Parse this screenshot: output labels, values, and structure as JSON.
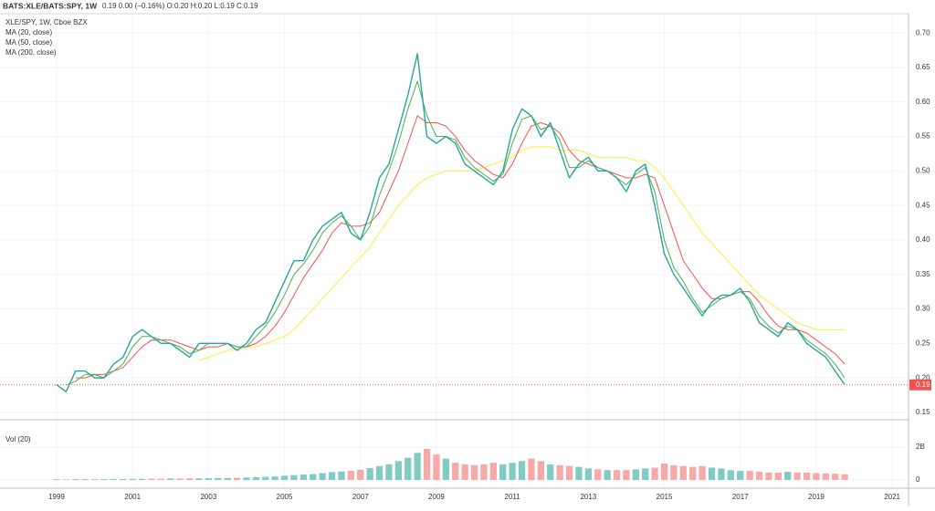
{
  "chart_data": {
    "type": "line",
    "title": "BATS:XLE/BATS:SPY, 1W",
    "subtitle": "0.19 0.00 (−0.16%) O:0.20 H:0.20 L:0.19 C:0.19",
    "x": [
      1999,
      1999.25,
      1999.5,
      1999.75,
      2000,
      2000.25,
      2000.5,
      2000.75,
      2001,
      2001.25,
      2001.5,
      2001.75,
      2002,
      2002.25,
      2002.5,
      2002.75,
      2003,
      2003.25,
      2003.5,
      2003.75,
      2004,
      2004.25,
      2004.5,
      2004.75,
      2005,
      2005.25,
      2005.5,
      2005.75,
      2006,
      2006.25,
      2006.5,
      2006.75,
      2007,
      2007.25,
      2007.5,
      2007.75,
      2008,
      2008.25,
      2008.5,
      2008.75,
      2009,
      2009.25,
      2009.5,
      2009.75,
      2010,
      2010.25,
      2010.5,
      2010.75,
      2011,
      2011.25,
      2011.5,
      2011.75,
      2012,
      2012.25,
      2012.5,
      2012.75,
      2013,
      2013.25,
      2013.5,
      2013.75,
      2014,
      2014.25,
      2014.5,
      2014.75,
      2015,
      2015.25,
      2015.5,
      2015.75,
      2016,
      2016.25,
      2016.5,
      2016.75,
      2017,
      2017.25,
      2017.5,
      2017.75,
      2018,
      2018.25,
      2018.5,
      2018.75,
      2019,
      2019.25,
      2019.5,
      2019.75
    ],
    "series": [
      {
        "name": "XLE/SPY, 1W, Cboe BZX",
        "color": "#26a69a",
        "width": 1.4,
        "values": [
          0.19,
          0.18,
          0.21,
          0.21,
          0.2,
          0.2,
          0.22,
          0.23,
          0.26,
          0.27,
          0.26,
          0.25,
          0.25,
          0.24,
          0.23,
          0.25,
          0.25,
          0.25,
          0.25,
          0.24,
          0.25,
          0.27,
          0.28,
          0.31,
          0.34,
          0.37,
          0.37,
          0.4,
          0.42,
          0.43,
          0.44,
          0.41,
          0.4,
          0.44,
          0.49,
          0.51,
          0.56,
          0.61,
          0.67,
          0.55,
          0.54,
          0.55,
          0.54,
          0.51,
          0.5,
          0.49,
          0.48,
          0.5,
          0.56,
          0.59,
          0.58,
          0.55,
          0.57,
          0.53,
          0.49,
          0.51,
          0.52,
          0.5,
          0.5,
          0.49,
          0.47,
          0.5,
          0.51,
          0.45,
          0.38,
          0.35,
          0.33,
          0.31,
          0.29,
          0.31,
          0.32,
          0.32,
          0.33,
          0.31,
          0.28,
          0.27,
          0.26,
          0.28,
          0.27,
          0.25,
          0.24,
          0.23,
          0.21,
          0.19
        ]
      },
      {
        "name": "MA (20, close)",
        "color": "#4caf50",
        "width": 1,
        "values": [
          null,
          0.19,
          0.195,
          0.205,
          0.205,
          0.2,
          0.21,
          0.22,
          0.245,
          0.26,
          0.26,
          0.255,
          0.25,
          0.245,
          0.235,
          0.24,
          0.25,
          0.25,
          0.25,
          0.245,
          0.245,
          0.26,
          0.275,
          0.295,
          0.32,
          0.35,
          0.365,
          0.385,
          0.41,
          0.425,
          0.435,
          0.42,
          0.4,
          0.42,
          0.465,
          0.5,
          0.54,
          0.59,
          0.63,
          0.58,
          0.55,
          0.55,
          0.545,
          0.52,
          0.505,
          0.495,
          0.485,
          0.495,
          0.54,
          0.575,
          0.58,
          0.56,
          0.565,
          0.545,
          0.505,
          0.505,
          0.515,
          0.505,
          0.5,
          0.49,
          0.48,
          0.495,
          0.505,
          0.47,
          0.4,
          0.36,
          0.34,
          0.315,
          0.295,
          0.305,
          0.315,
          0.32,
          0.325,
          0.315,
          0.29,
          0.275,
          0.265,
          0.275,
          0.27,
          0.255,
          0.245,
          0.235,
          0.22,
          0.2
        ]
      },
      {
        "name": "MA (50, close)",
        "color": "#ef5350",
        "width": 1,
        "values": [
          null,
          null,
          0.2,
          0.2,
          0.205,
          0.205,
          0.21,
          0.215,
          0.23,
          0.245,
          0.255,
          0.255,
          0.255,
          0.25,
          0.245,
          0.24,
          0.245,
          0.245,
          0.25,
          0.245,
          0.245,
          0.25,
          0.26,
          0.275,
          0.295,
          0.32,
          0.345,
          0.365,
          0.385,
          0.41,
          0.425,
          0.42,
          0.42,
          0.425,
          0.44,
          0.47,
          0.5,
          0.54,
          0.58,
          0.57,
          0.57,
          0.565,
          0.55,
          0.53,
          0.515,
          0.505,
          0.495,
          0.49,
          0.51,
          0.54,
          0.565,
          0.57,
          0.565,
          0.555,
          0.53,
          0.515,
          0.51,
          0.505,
          0.5,
          0.495,
          0.49,
          0.49,
          0.495,
          0.49,
          0.45,
          0.41,
          0.37,
          0.35,
          0.33,
          0.315,
          0.315,
          0.32,
          0.325,
          0.325,
          0.31,
          0.29,
          0.275,
          0.27,
          0.27,
          0.265,
          0.255,
          0.245,
          0.235,
          0.22
        ]
      },
      {
        "name": "MA (200, close)",
        "color": "#ffeb3b",
        "width": 1,
        "values": [
          null,
          null,
          null,
          null,
          null,
          null,
          null,
          null,
          null,
          null,
          null,
          null,
          null,
          null,
          null,
          0.225,
          0.23,
          0.235,
          0.24,
          0.24,
          0.245,
          0.245,
          0.25,
          0.255,
          0.26,
          0.27,
          0.285,
          0.3,
          0.315,
          0.33,
          0.345,
          0.36,
          0.375,
          0.39,
          0.41,
          0.43,
          0.45,
          0.465,
          0.48,
          0.49,
          0.495,
          0.5,
          0.5,
          0.5,
          0.5,
          0.505,
          0.51,
          0.515,
          0.52,
          0.53,
          0.535,
          0.535,
          0.535,
          0.53,
          0.53,
          0.53,
          0.525,
          0.52,
          0.52,
          0.52,
          0.52,
          0.515,
          0.515,
          0.505,
          0.49,
          0.47,
          0.45,
          0.43,
          0.41,
          0.395,
          0.38,
          0.365,
          0.35,
          0.335,
          0.32,
          0.31,
          0.3,
          0.29,
          0.28,
          0.275,
          0.27,
          0.27,
          0.27,
          0.27
        ]
      }
    ],
    "xlim": [
      1997.51,
      2021.43
    ],
    "xticks": [
      1999,
      2001,
      2003,
      2005,
      2007,
      2009,
      2011,
      2013,
      2015,
      2017,
      2019,
      2021
    ],
    "ylim": [
      0.142,
      0.728
    ],
    "yticks": [
      0.15,
      {
        "value": 0.2,
        "label": "0.20"
      },
      0.25,
      {
        "value": 0.3,
        "label": "0.30"
      },
      0.35,
      {
        "value": 0.4,
        "label": "0.40"
      },
      0.45,
      {
        "value": 0.5,
        "label": "0.50"
      },
      0.55,
      {
        "value": 0.6,
        "label": "0.60"
      },
      0.65,
      {
        "value": 0.7,
        "label": "0.70"
      }
    ],
    "grid": true,
    "last_price": 0.19,
    "last_price_color": "#ef5350",
    "volume": {
      "title": "Vol (20)",
      "up_color": "#80cbc4",
      "down_color": "#f7a9a7",
      "values": [
        40000000,
        40000000,
        50000000,
        50000000,
        50000000,
        50000000,
        60000000,
        60000000,
        70000000,
        70000000,
        80000000,
        80000000,
        90000000,
        90000000,
        100000000,
        100000000,
        110000000,
        120000000,
        120000000,
        130000000,
        150000000,
        170000000,
        190000000,
        210000000,
        260000000,
        300000000,
        330000000,
        360000000,
        420000000,
        480000000,
        520000000,
        560000000,
        620000000,
        720000000,
        850000000,
        950000000,
        1150000000,
        1350000000,
        1650000000,
        1900000000,
        1550000000,
        1300000000,
        1050000000,
        950000000,
        900000000,
        950000000,
        1050000000,
        950000000,
        1050000000,
        1150000000,
        1300000000,
        1150000000,
        950000000,
        900000000,
        850000000,
        800000000,
        700000000,
        650000000,
        600000000,
        600000000,
        600000000,
        650000000,
        700000000,
        750000000,
        1000000000,
        900000000,
        850000000,
        800000000,
        850000000,
        750000000,
        700000000,
        600000000,
        550000000,
        550000000,
        500000000,
        450000000,
        450000000,
        500000000,
        450000000,
        450000000,
        420000000,
        400000000,
        380000000,
        350000000
      ],
      "ylim": [
        -390000000,
        3560000000
      ],
      "yticks": [
        0,
        {
          "value": 2000000000,
          "label": "2B"
        }
      ]
    }
  }
}
